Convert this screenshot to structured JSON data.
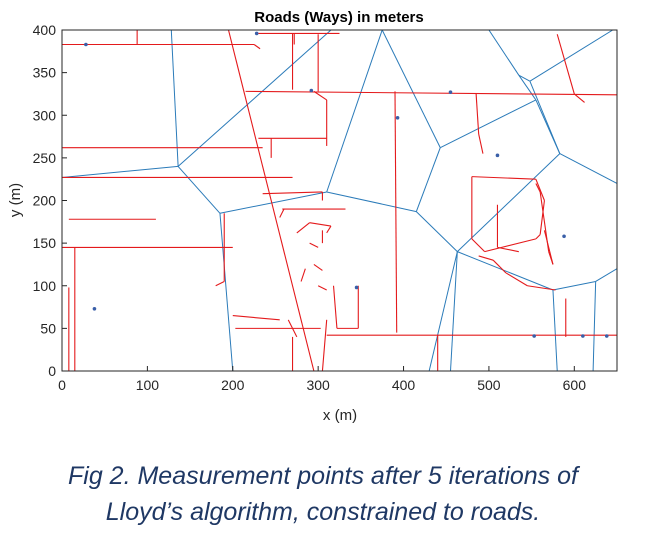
{
  "chart_data": {
    "type": "line",
    "title": "Roads (Ways) in meters",
    "xlabel": "x (m)",
    "ylabel": "y (m)",
    "xlim": [
      0,
      650
    ],
    "ylim": [
      0,
      400
    ],
    "xticks": [
      0,
      100,
      200,
      300,
      400,
      500,
      600
    ],
    "yticks": [
      0,
      50,
      100,
      150,
      200,
      250,
      300,
      350,
      400
    ],
    "grid": false,
    "legend": "none",
    "colors": {
      "roads": "#e41a1c",
      "cells": "#2b7bb9",
      "points": "#3a5fa8"
    },
    "series": [
      {
        "kind": "voronoi-edges",
        "segments": [
          [
            [
              128,
              400
            ],
            [
              136,
              240
            ]
          ],
          [
            [
              136,
              240
            ],
            [
              0,
              227
            ]
          ],
          [
            [
              136,
              240
            ],
            [
              185,
              185
            ]
          ],
          [
            [
              136,
              240
            ],
            [
              315,
              400
            ]
          ],
          [
            [
              185,
              185
            ],
            [
              200,
              0
            ]
          ],
          [
            [
              185,
              185
            ],
            [
              310,
              210
            ]
          ],
          [
            [
              310,
              210
            ],
            [
              415,
              187
            ]
          ],
          [
            [
              310,
              210
            ],
            [
              375,
              400
            ]
          ],
          [
            [
              375,
              400
            ],
            [
              443,
              262
            ]
          ],
          [
            [
              443,
              262
            ],
            [
              415,
              187
            ]
          ],
          [
            [
              415,
              187
            ],
            [
              463,
              140
            ]
          ],
          [
            [
              443,
              262
            ],
            [
              555,
              318
            ]
          ],
          [
            [
              500,
              400
            ],
            [
              535,
              347
            ]
          ],
          [
            [
              535,
              347
            ],
            [
              555,
              318
            ]
          ],
          [
            [
              535,
              347
            ],
            [
              548,
              340
            ]
          ],
          [
            [
              548,
              340
            ],
            [
              583,
              255
            ]
          ],
          [
            [
              548,
              340
            ],
            [
              645,
              400
            ]
          ],
          [
            [
              555,
              318
            ],
            [
              583,
              255
            ]
          ],
          [
            [
              583,
              255
            ],
            [
              650,
              220
            ]
          ],
          [
            [
              583,
              255
            ],
            [
              463,
              140
            ]
          ],
          [
            [
              463,
              140
            ],
            [
              455,
              0
            ]
          ],
          [
            [
              463,
              140
            ],
            [
              575,
              95
            ]
          ],
          [
            [
              575,
              95
            ],
            [
              580,
              0
            ]
          ],
          [
            [
              575,
              95
            ],
            [
              625,
              105
            ]
          ],
          [
            [
              625,
              105
            ],
            [
              650,
              120
            ]
          ],
          [
            [
              625,
              105
            ],
            [
              622,
              0
            ]
          ],
          [
            [
              463,
              140
            ],
            [
              430,
              0
            ]
          ]
        ]
      },
      {
        "kind": "roads",
        "polylines": [
          [
            [
              0,
              383
            ],
            [
              225,
              383
            ]
          ],
          [
            [
              88,
              400
            ],
            [
              88,
              383
            ]
          ],
          [
            [
              225,
              383
            ],
            [
              232,
              378
            ]
          ],
          [
            [
              230,
              396
            ],
            [
              325,
              396
            ]
          ],
          [
            [
              272,
              383
            ],
            [
              272,
              396
            ]
          ],
          [
            [
              195,
              400
            ],
            [
              295,
              0
            ]
          ],
          [
            [
              270,
              396
            ],
            [
              270,
              330
            ]
          ],
          [
            [
              215,
              328
            ],
            [
              650,
              324
            ]
          ],
          [
            [
              300,
              395
            ],
            [
              300,
              328
            ]
          ],
          [
            [
              295,
              328
            ],
            [
              310,
              318
            ]
          ],
          [
            [
              0,
              262
            ],
            [
              235,
              262
            ]
          ],
          [
            [
              310,
              318
            ],
            [
              310,
              264
            ]
          ],
          [
            [
              230,
              273
            ],
            [
              310,
              273
            ]
          ],
          [
            [
              0,
              227
            ],
            [
              270,
              227
            ]
          ],
          [
            [
              245,
              250
            ],
            [
              245,
              273
            ]
          ],
          [
            [
              235,
              208
            ],
            [
              305,
              210
            ]
          ],
          [
            [
              305,
              210
            ],
            [
              305,
              200
            ]
          ],
          [
            [
              258,
              190
            ],
            [
              332,
              190
            ]
          ],
          [
            [
              260,
              190
            ],
            [
              255,
              180
            ]
          ],
          [
            [
              190,
              185
            ],
            [
              190,
              105
            ]
          ],
          [
            [
              190,
              105
            ],
            [
              180,
              100
            ]
          ],
          [
            [
              0,
              145
            ],
            [
              200,
              145
            ]
          ],
          [
            [
              15,
              145
            ],
            [
              15,
              0
            ]
          ],
          [
            [
              8,
              178
            ],
            [
              110,
              178
            ]
          ],
          [
            [
              8,
              0
            ],
            [
              8,
              98
            ]
          ],
          [
            [
              255,
              60
            ],
            [
              200,
              65
            ]
          ],
          [
            [
              203,
              50
            ],
            [
              303,
              50
            ]
          ],
          [
            [
              270,
              40
            ],
            [
              270,
              0
            ]
          ],
          [
            [
              265,
              60
            ],
            [
              275,
              40
            ]
          ],
          [
            [
              275,
              162
            ],
            [
              290,
              174
            ]
          ],
          [
            [
              290,
              174
            ],
            [
              315,
              170
            ]
          ],
          [
            [
              315,
              170
            ],
            [
              310,
              162
            ]
          ],
          [
            [
              305,
              165
            ],
            [
              305,
              150
            ]
          ],
          [
            [
              290,
              150
            ],
            [
              300,
              145
            ]
          ],
          [
            [
              280,
              105
            ],
            [
              285,
              120
            ]
          ],
          [
            [
              295,
              125
            ],
            [
              305,
              118
            ]
          ],
          [
            [
              300,
              100
            ],
            [
              310,
              95
            ]
          ],
          [
            [
              310,
              60
            ],
            [
              305,
              0
            ]
          ],
          [
            [
              318,
              100
            ],
            [
              322,
              50
            ]
          ],
          [
            [
              322,
              50
            ],
            [
              347,
              50
            ]
          ],
          [
            [
              347,
              50
            ],
            [
              347,
              100
            ]
          ],
          [
            [
              390,
              328
            ],
            [
              392,
              45
            ]
          ],
          [
            [
              310,
              42
            ],
            [
              650,
              42
            ]
          ],
          [
            [
              440,
              42
            ],
            [
              440,
              0
            ]
          ],
          [
            [
              485,
              325
            ],
            [
              488,
              278
            ]
          ],
          [
            [
              488,
              278
            ],
            [
              493,
              255
            ]
          ],
          [
            [
              480,
              228
            ],
            [
              555,
              225
            ]
          ],
          [
            [
              480,
              228
            ],
            [
              480,
              155
            ]
          ],
          [
            [
              480,
              155
            ],
            [
              495,
              140
            ]
          ],
          [
            [
              495,
              140
            ],
            [
              555,
              155
            ]
          ],
          [
            [
              555,
              155
            ],
            [
              560,
              160
            ]
          ],
          [
            [
              560,
              160
            ],
            [
              565,
              200
            ]
          ],
          [
            [
              565,
              200
            ],
            [
              555,
              225
            ]
          ],
          [
            [
              510,
              195
            ],
            [
              510,
              145
            ]
          ],
          [
            [
              510,
              145
            ],
            [
              535,
              140
            ]
          ],
          [
            [
              555,
              220
            ],
            [
              560,
              210
            ]
          ],
          [
            [
              560,
              210
            ],
            [
              570,
              140
            ]
          ],
          [
            [
              570,
              140
            ],
            [
              575,
              125
            ]
          ],
          [
            [
              565,
              165
            ],
            [
              575,
              125
            ]
          ],
          [
            [
              488,
              135
            ],
            [
              505,
              130
            ]
          ],
          [
            [
              505,
              130
            ],
            [
              520,
              115
            ]
          ],
          [
            [
              520,
              115
            ],
            [
              545,
              100
            ]
          ],
          [
            [
              545,
              100
            ],
            [
              578,
              95
            ]
          ],
          [
            [
              580,
              395
            ],
            [
              600,
              325
            ]
          ],
          [
            [
              600,
              325
            ],
            [
              612,
              315
            ]
          ],
          [
            [
              590,
              85
            ],
            [
              590,
              42
            ]
          ],
          [
            [
              590,
              42
            ],
            [
              590,
              40
            ]
          ]
        ]
      },
      {
        "kind": "measurement-points",
        "x": [
          28,
          228,
          292,
          455,
          393,
          510,
          38,
          345,
          588,
          553,
          610,
          638
        ],
        "y": [
          383,
          396,
          329,
          327,
          297,
          253,
          73,
          98,
          158,
          41,
          41,
          41
        ]
      }
    ]
  },
  "caption": {
    "line1": "Fig 2. Measurement points after 5 iterations of",
    "line2": "Lloyd’s algorithm, constrained to roads."
  }
}
